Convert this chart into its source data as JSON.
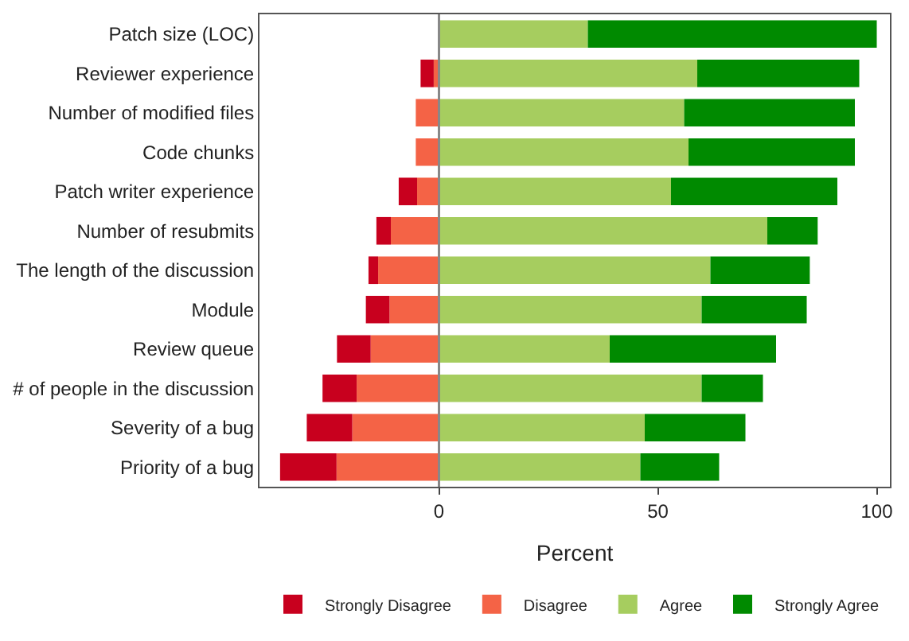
{
  "chart_data": {
    "type": "bar",
    "orientation": "horizontal",
    "stacked": true,
    "xlabel": "Percent",
    "categories": [
      "Patch size (LOC)",
      "Reviewer experience",
      "Number of modified files",
      "Code chunks",
      "Patch writer experience",
      "Number of resubmits",
      "The length of the discussion",
      "Module",
      "Review queue",
      "# of people in the discussion",
      "Severity of a bug",
      "Priority of a bug"
    ],
    "series": [
      {
        "name": "Disagree",
        "color": "#f46346",
        "values": [
          null,
          -1.2,
          -5.3,
          -5.3,
          -5,
          -11,
          -13.9,
          -11.3,
          -15.6,
          -18.8,
          -19.8,
          -23.4
        ]
      },
      {
        "name": "Strongly Disagree",
        "color": "#c8001e",
        "values": [
          null,
          -3,
          null,
          null,
          -4.2,
          -3.3,
          -2.2,
          -5.4,
          -7.7,
          -7.8,
          -10.4,
          -12.9
        ]
      },
      {
        "name": "Agree",
        "color": "#a6cd5f",
        "values": [
          34,
          59,
          56,
          57,
          53,
          75,
          62,
          60,
          39,
          60,
          47,
          46
        ]
      },
      {
        "name": "Strongly Agree",
        "color": "#008a00",
        "values": [
          66,
          37,
          39,
          38,
          38,
          11.5,
          22.7,
          24,
          38,
          14,
          23,
          18
        ]
      }
    ],
    "xlim": [
      -41,
      103
    ],
    "xticks": [
      0,
      50,
      100
    ],
    "grid": false,
    "ref_lines": [
      {
        "axis": "x",
        "value": 0,
        "color": "#888888"
      }
    ],
    "legend": "bottom"
  }
}
